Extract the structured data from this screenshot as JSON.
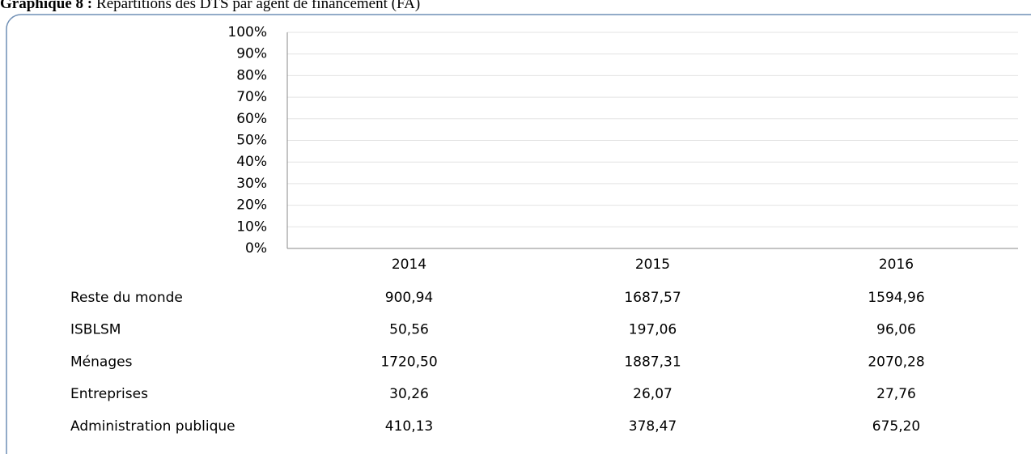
{
  "chart_data": {
    "type": "bar",
    "title_label": "Graphique 8 :",
    "title": "Répartitions des DTS par agent de financement (FA)",
    "categories": [
      "2014",
      "2015",
      "2016"
    ],
    "ylim": [
      0,
      100
    ],
    "yticks": [
      {
        "value": 0,
        "label": "0%"
      },
      {
        "value": 10,
        "label": "10%"
      },
      {
        "value": 20,
        "label": "20%"
      },
      {
        "value": 30,
        "label": "30%"
      },
      {
        "value": 40,
        "label": "40%"
      },
      {
        "value": 50,
        "label": "50%"
      },
      {
        "value": 60,
        "label": "60%"
      },
      {
        "value": 70,
        "label": "70%"
      },
      {
        "value": 80,
        "label": "80%"
      },
      {
        "value": 90,
        "label": "90%"
      },
      {
        "value": 100,
        "label": "100%"
      }
    ],
    "grid": true,
    "data_table": [
      {
        "name": "Reste du monde",
        "cells": [
          "900,94",
          "1687,57",
          "1594,96"
        ]
      },
      {
        "name": "ISBLSM",
        "cells": [
          "50,56",
          "197,06",
          "96,06"
        ]
      },
      {
        "name": "Ménages",
        "cells": [
          "1720,50",
          "1887,31",
          "2070,28"
        ]
      },
      {
        "name": "Entreprises",
        "cells": [
          "30,26",
          "26,07",
          "27,76"
        ]
      },
      {
        "name": "Administration publique",
        "cells": [
          "410,13",
          "378,47",
          "675,20"
        ]
      }
    ]
  }
}
